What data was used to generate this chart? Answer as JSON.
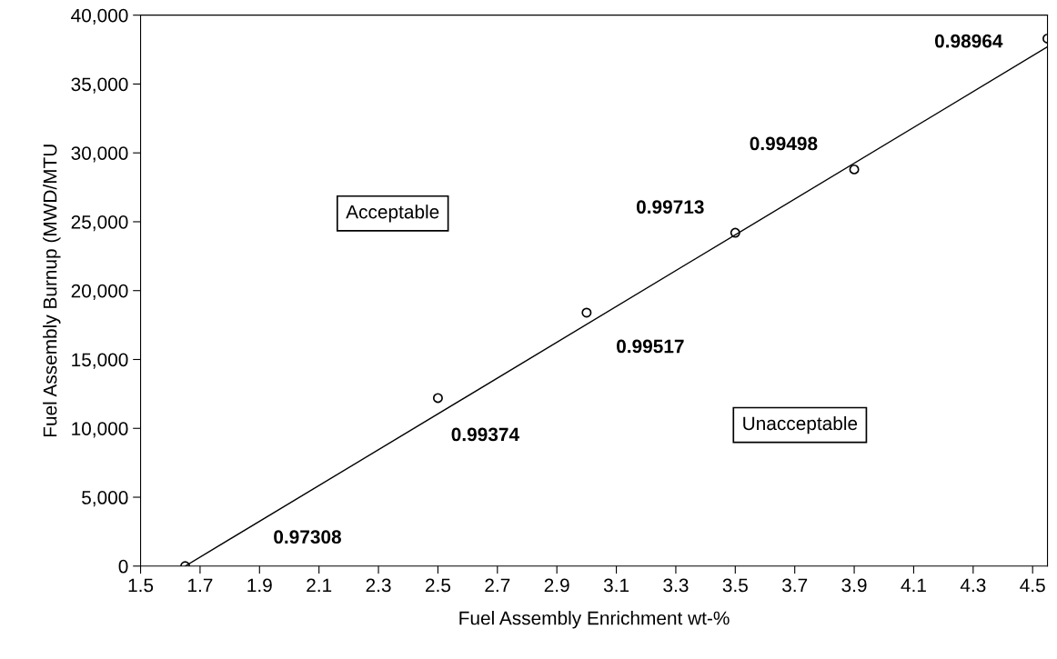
{
  "chart_data": {
    "type": "scatter",
    "xlabel": "Fuel Assembly Enrichment wt-%",
    "ylabel": "Fuel Assembly Burnup (MWD/MTU",
    "xlim": [
      1.5,
      4.55
    ],
    "xticks": [
      1.5,
      1.7,
      1.9,
      2.1,
      2.3,
      2.5,
      2.7,
      2.9,
      3.1,
      3.3,
      3.5,
      3.7,
      3.9,
      4.1,
      4.3,
      4.5
    ],
    "ylim": [
      0,
      40000
    ],
    "yticks": [
      {
        "value": 0,
        "label": "0"
      },
      {
        "value": 5000,
        "label": "5,000"
      },
      {
        "value": 10000,
        "label": "10,000"
      },
      {
        "value": 15000,
        "label": "15,000"
      },
      {
        "value": 20000,
        "label": "20,000"
      },
      {
        "value": 25000,
        "label": "25,000"
      },
      {
        "value": 30000,
        "label": "30,000"
      },
      {
        "value": 35000,
        "label": "35,000"
      },
      {
        "value": 40000,
        "label": "40,000"
      }
    ],
    "grid": false,
    "legend": false,
    "series": [
      {
        "color": "#000000",
        "marker": "circle",
        "x": [
          1.65,
          2.5,
          3.0,
          3.5,
          3.9,
          4.55
        ],
        "values": [
          0,
          12200,
          18400,
          24200,
          28800,
          38300
        ]
      },
      {
        "type": "line",
        "color": "#000000",
        "marker": "none",
        "line_style": "solid",
        "x": [
          1.65,
          4.55
        ],
        "values": [
          0,
          37700
        ]
      }
    ],
    "annotations": [
      "0.97308",
      "0.99374",
      "0.99517",
      "0.99713",
      "0.99498",
      "0.98964",
      "Acceptable",
      "Unacceptable"
    ]
  }
}
